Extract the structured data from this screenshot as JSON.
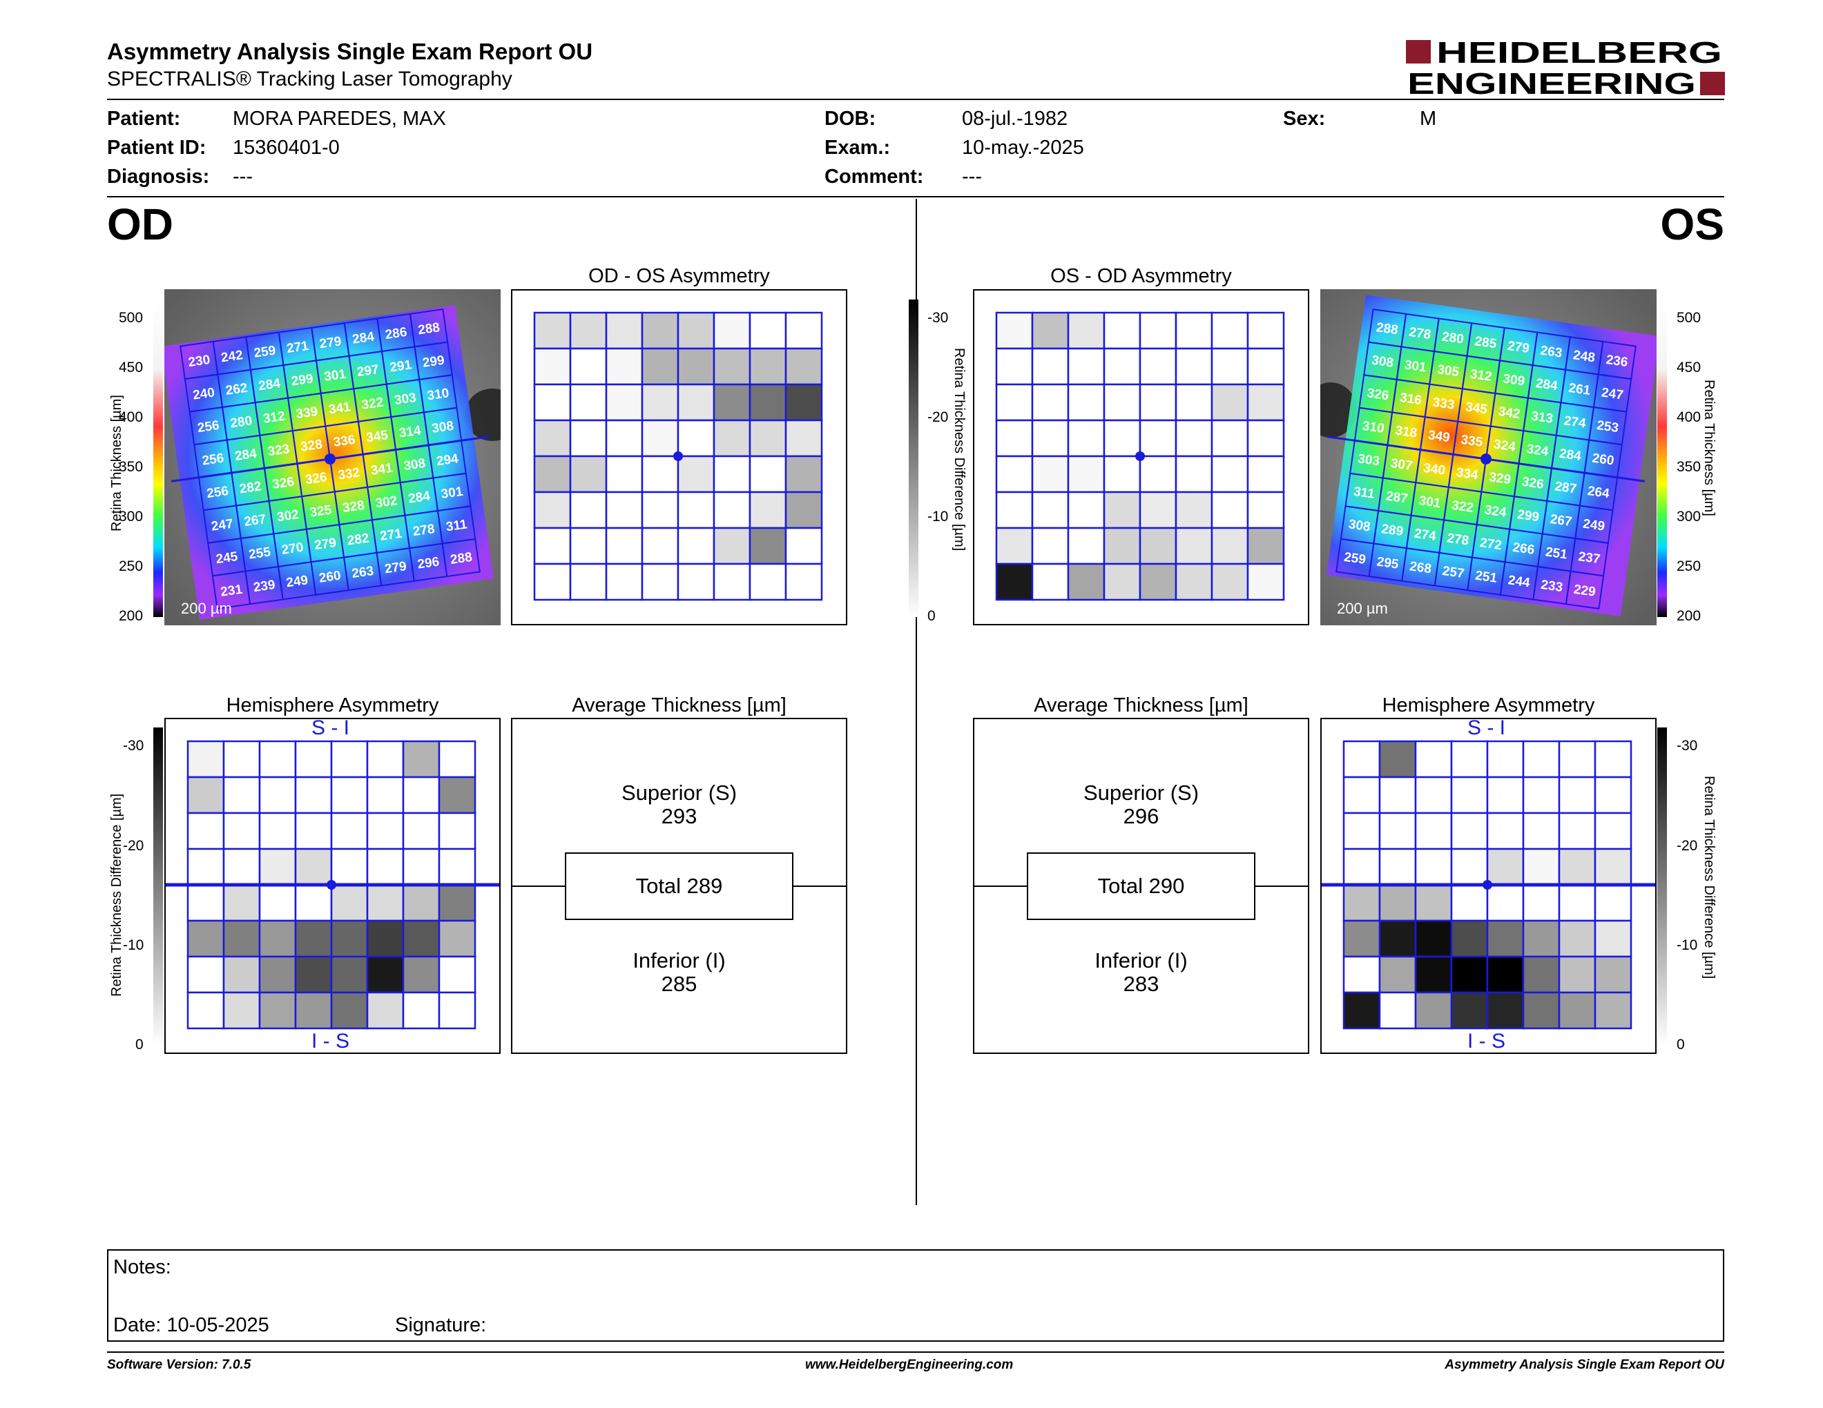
{
  "header": {
    "title": "Asymmetry Analysis Single Exam Report OU",
    "subtitle": "SPECTRALIS® Tracking Laser Tomography",
    "logo_line1": "HEIDELBERG",
    "logo_line2": "ENGINEERING",
    "brand_color": "#8b1a2b"
  },
  "patient": {
    "patient_label": "Patient:",
    "patient_value": "MORA PAREDES, MAX",
    "id_label": "Patient ID:",
    "id_value": "15360401-0",
    "diagnosis_label": "Diagnosis:",
    "diagnosis_value": "---",
    "dob_label": "DOB:",
    "dob_value": "08-jul.-1982",
    "exam_label": "Exam.:",
    "exam_value": "10-may.-2025",
    "comment_label": "Comment:",
    "comment_value": "---",
    "sex_label": "Sex:",
    "sex_value": "M"
  },
  "od": {
    "eye_label": "OD",
    "asym_title": "OD - OS Asymmetry",
    "hemi_title": "Hemisphere Asymmetry",
    "hemi_top": "S - I",
    "hemi_bottom": "I - S",
    "avg_title": "Average Thickness [µm]",
    "superior_label": "Superior (S)",
    "superior_value": "293",
    "total_label": "Total 289",
    "inferior_label": "Inferior (I)",
    "inferior_value": "285",
    "scale_text": "200 µm",
    "thickness_grid": [
      [
        230,
        242,
        259,
        271,
        279,
        284,
        286,
        288
      ],
      [
        240,
        262,
        284,
        299,
        301,
        297,
        291,
        299
      ],
      [
        256,
        280,
        312,
        339,
        341,
        322,
        303,
        310
      ],
      [
        256,
        284,
        323,
        328,
        336,
        345,
        314,
        308
      ],
      [
        256,
        282,
        326,
        326,
        332,
        341,
        308,
        294
      ],
      [
        247,
        267,
        302,
        325,
        328,
        302,
        284,
        301
      ],
      [
        245,
        255,
        270,
        279,
        282,
        271,
        278,
        311
      ],
      [
        231,
        239,
        249,
        260,
        263,
        279,
        296,
        288
      ]
    ],
    "asym_grid": [
      [
        14,
        14,
        10,
        24,
        18,
        3,
        0,
        0
      ],
      [
        3,
        0,
        3,
        30,
        30,
        25,
        25,
        25
      ],
      [
        0,
        0,
        3,
        10,
        10,
        45,
        55,
        70
      ],
      [
        14,
        0,
        0,
        3,
        0,
        14,
        14,
        10
      ],
      [
        25,
        18,
        0,
        0,
        10,
        0,
        0,
        30
      ],
      [
        10,
        0,
        0,
        0,
        0,
        0,
        10,
        35
      ],
      [
        0,
        0,
        0,
        0,
        0,
        14,
        45,
        0
      ],
      [
        0,
        0,
        0,
        0,
        0,
        0,
        0,
        0
      ]
    ],
    "hemi_grid": [
      [
        5,
        0,
        0,
        0,
        0,
        0,
        30,
        0
      ],
      [
        20,
        0,
        0,
        0,
        0,
        0,
        0,
        45
      ],
      [
        0,
        0,
        0,
        0,
        0,
        0,
        0,
        0
      ],
      [
        0,
        0,
        8,
        14,
        0,
        0,
        0,
        0
      ],
      [
        0,
        14,
        0,
        0,
        14,
        14,
        24,
        50
      ],
      [
        40,
        50,
        40,
        60,
        60,
        75,
        65,
        30
      ],
      [
        0,
        20,
        45,
        70,
        60,
        90,
        45,
        0
      ],
      [
        0,
        14,
        35,
        40,
        55,
        14,
        0,
        0
      ]
    ]
  },
  "os": {
    "eye_label": "OS",
    "asym_title": "OS - OD Asymmetry",
    "hemi_title": "Hemisphere Asymmetry",
    "hemi_top": "S - I",
    "hemi_bottom": "I - S",
    "avg_title": "Average Thickness [µm]",
    "superior_label": "Superior (S)",
    "superior_value": "296",
    "total_label": "Total 290",
    "inferior_label": "Inferior (I)",
    "inferior_value": "283",
    "scale_text": "200 µm",
    "thickness_grid": [
      [
        288,
        278,
        280,
        285,
        279,
        263,
        248,
        236
      ],
      [
        308,
        301,
        305,
        312,
        309,
        284,
        261,
        247
      ],
      [
        326,
        316,
        333,
        345,
        342,
        313,
        274,
        253
      ],
      [
        310,
        318,
        349,
        335,
        324,
        324,
        284,
        260
      ],
      [
        303,
        307,
        340,
        334,
        329,
        326,
        287,
        264
      ],
      [
        311,
        287,
        301,
        322,
        324,
        299,
        267,
        249
      ],
      [
        308,
        289,
        274,
        278,
        272,
        266,
        251,
        237
      ],
      [
        259,
        295,
        268,
        257,
        251,
        244,
        233,
        229
      ]
    ],
    "asym_grid": [
      [
        3,
        24,
        10,
        0,
        0,
        0,
        0,
        0
      ],
      [
        0,
        0,
        0,
        0,
        0,
        0,
        0,
        0
      ],
      [
        0,
        0,
        0,
        0,
        0,
        0,
        14,
        10
      ],
      [
        0,
        0,
        0,
        0,
        0,
        0,
        0,
        0
      ],
      [
        0,
        3,
        3,
        0,
        0,
        0,
        0,
        0
      ],
      [
        0,
        0,
        0,
        14,
        8,
        10,
        0,
        0
      ],
      [
        10,
        0,
        0,
        18,
        18,
        10,
        10,
        30
      ],
      [
        90,
        0,
        35,
        14,
        30,
        14,
        14,
        3
      ]
    ],
    "hemi_grid": [
      [
        0,
        55,
        0,
        0,
        0,
        0,
        0,
        0
      ],
      [
        0,
        0,
        0,
        0,
        0,
        0,
        0,
        0
      ],
      [
        0,
        0,
        0,
        0,
        0,
        0,
        0,
        0
      ],
      [
        0,
        0,
        0,
        0,
        14,
        3,
        14,
        10
      ],
      [
        25,
        30,
        24,
        0,
        0,
        0,
        0,
        0
      ],
      [
        45,
        90,
        95,
        70,
        55,
        40,
        20,
        10
      ],
      [
        0,
        35,
        95,
        100,
        100,
        55,
        25,
        30
      ],
      [
        90,
        0,
        40,
        80,
        85,
        55,
        40,
        30
      ]
    ]
  },
  "scales": {
    "thickness_axis_label": "Retina Thickness [µm]",
    "thickness_ticks": [
      "500",
      "450",
      "400",
      "350",
      "300",
      "250",
      "200"
    ],
    "diff_axis_label": "Retina Thickness Difference [µm]",
    "diff_ticks": [
      "-30",
      "-20",
      "-10",
      "0"
    ]
  },
  "notes": {
    "notes_label": "Notes:",
    "date_label": "Date: 10-05-2025",
    "signature_label": "Signature:"
  },
  "footer": {
    "software": "Software Version: 7.0.5",
    "website": "www.HeidelbergEngineering.com",
    "report_name": "Asymmetry Analysis Single Exam Report OU"
  }
}
